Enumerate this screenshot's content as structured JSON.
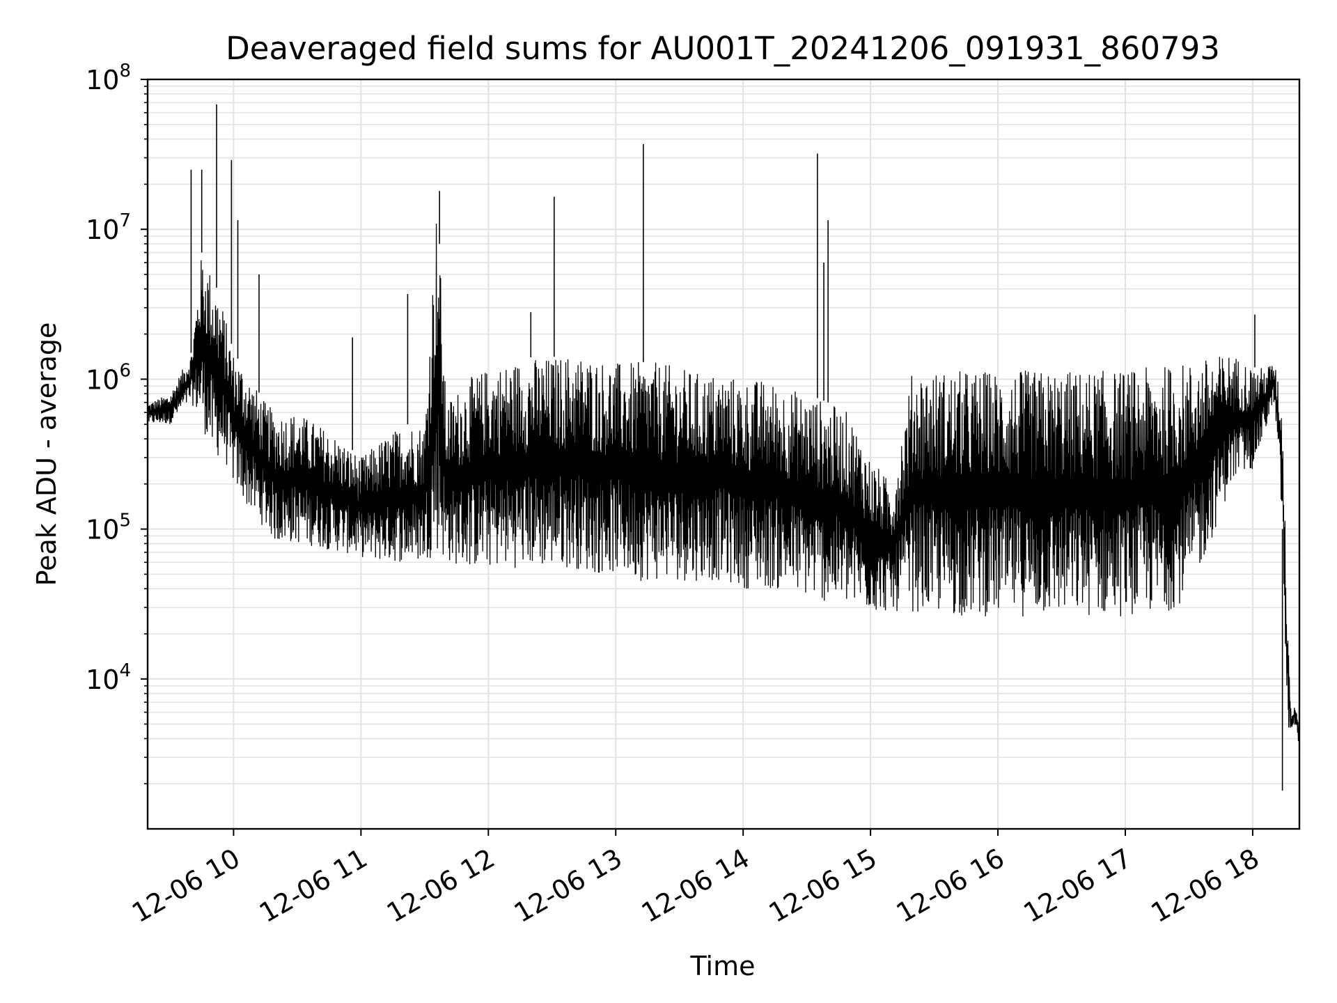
{
  "chart_data": {
    "type": "line",
    "title": "Deaveraged field sums for AU001T_20241206_091931_860793",
    "xlabel": "Time",
    "ylabel": "Peak ADU - average",
    "yscale": "log",
    "xlim": [
      "2024-12-06 09:19:31",
      "2024-12-06 18:22:00"
    ],
    "ylim": [
      1000,
      100000000
    ],
    "x_ticks": [
      "12-06 10",
      "12-06 11",
      "12-06 12",
      "12-06 13",
      "12-06 14",
      "12-06 15",
      "12-06 16",
      "12-06 17",
      "12-06 18"
    ],
    "y_ticks": [
      {
        "base": "10",
        "exp": "4",
        "value": 10000
      },
      {
        "base": "10",
        "exp": "5",
        "value": 100000
      },
      {
        "base": "10",
        "exp": "6",
        "value": 1000000
      },
      {
        "base": "10",
        "exp": "7",
        "value": 10000000
      },
      {
        "base": "10",
        "exp": "8",
        "value": 100000000
      }
    ],
    "grid": true,
    "line_color": "#000000",
    "series": [
      {
        "x": [
          "2024-12-06 09:20",
          "2024-12-06 09:30",
          "2024-12-06 09:40",
          "2024-12-06 09:45",
          "2024-12-06 09:50",
          "2024-12-06 09:55",
          "2024-12-06 10:00",
          "2024-12-06 10:05",
          "2024-12-06 10:10",
          "2024-12-06 10:15",
          "2024-12-06 10:20",
          "2024-12-06 10:30",
          "2024-12-06 10:40",
          "2024-12-06 10:50",
          "2024-12-06 11:00",
          "2024-12-06 11:10",
          "2024-12-06 11:20",
          "2024-12-06 11:30",
          "2024-12-06 11:36",
          "2024-12-06 11:40",
          "2024-12-06 11:50",
          "2024-12-06 12:00",
          "2024-12-06 12:10",
          "2024-12-06 12:20",
          "2024-12-06 12:30",
          "2024-12-06 12:40",
          "2024-12-06 12:50",
          "2024-12-06 13:00",
          "2024-12-06 13:10",
          "2024-12-06 13:20",
          "2024-12-06 13:30",
          "2024-12-06 13:40",
          "2024-12-06 13:50",
          "2024-12-06 14:00",
          "2024-12-06 14:10",
          "2024-12-06 14:20",
          "2024-12-06 14:30",
          "2024-12-06 14:40",
          "2024-12-06 14:50",
          "2024-12-06 15:00",
          "2024-12-06 15:10",
          "2024-12-06 15:20",
          "2024-12-06 15:30",
          "2024-12-06 15:40",
          "2024-12-06 15:50",
          "2024-12-06 16:00",
          "2024-12-06 16:10",
          "2024-12-06 16:20",
          "2024-12-06 16:30",
          "2024-12-06 16:40",
          "2024-12-06 16:50",
          "2024-12-06 17:00",
          "2024-12-06 17:10",
          "2024-12-06 17:20",
          "2024-12-06 17:30",
          "2024-12-06 17:40",
          "2024-12-06 17:50",
          "2024-12-06 18:00",
          "2024-12-06 18:05",
          "2024-12-06 18:10",
          "2024-12-06 18:12",
          "2024-12-06 18:14",
          "2024-12-06 18:16",
          "2024-12-06 18:18",
          "2024-12-06 18:20",
          "2024-12-06 18:22"
        ],
        "upper": [
          700000,
          800000,
          1500000,
          7000000,
          5000000,
          3000000,
          1500000,
          1200000,
          900000,
          700000,
          600000,
          600000,
          500000,
          400000,
          300000,
          400000,
          500000,
          500000,
          18000000,
          700000,
          1000000,
          1200000,
          1300000,
          1400000,
          1400000,
          1500000,
          1400000,
          1300000,
          1300000,
          1300000,
          1200000,
          1100000,
          1100000,
          1000000,
          1000000,
          900000,
          800000,
          700000,
          600000,
          300000,
          200000,
          1200000,
          1150000,
          1150000,
          1150000,
          1150000,
          1150000,
          1150000,
          1150000,
          1150000,
          1150000,
          1150000,
          1200000,
          1250000,
          1300000,
          1400000,
          1500000,
          1200000,
          1200000,
          1300000,
          1000000,
          600000,
          50000,
          6000,
          7000,
          5000
        ],
        "lower": [
          500000,
          500000,
          700000,
          500000,
          300000,
          300000,
          200000,
          150000,
          120000,
          100000,
          80000,
          80000,
          75000,
          70000,
          65000,
          60000,
          60000,
          60000,
          70000,
          60000,
          55000,
          55000,
          55000,
          55000,
          55000,
          55000,
          50000,
          50000,
          45000,
          45000,
          45000,
          45000,
          45000,
          40000,
          40000,
          38000,
          35000,
          32000,
          30000,
          28000,
          28000,
          28000,
          27000,
          26000,
          26000,
          26000,
          26000,
          26000,
          26000,
          26000,
          26000,
          26000,
          27000,
          28000,
          35000,
          80000,
          200000,
          250000,
          400000,
          700000,
          300000,
          100000,
          5000,
          4500,
          5000,
          3500
        ],
        "spikes": [
          {
            "x": "2024-12-06 09:52",
            "y": 68000000
          },
          {
            "x": "2024-12-06 09:59",
            "y": 29000000
          },
          {
            "x": "2024-12-06 09:40",
            "y": 25000000
          },
          {
            "x": "2024-12-06 09:45",
            "y": 25000000
          },
          {
            "x": "2024-12-06 10:02",
            "y": 11500000
          },
          {
            "x": "2024-12-06 10:12",
            "y": 5000000
          },
          {
            "x": "2024-12-06 10:56",
            "y": 1900000
          },
          {
            "x": "2024-12-06 11:22",
            "y": 3700000
          },
          {
            "x": "2024-12-06 11:37",
            "y": 18000000
          },
          {
            "x": "2024-12-06 12:20",
            "y": 2800000
          },
          {
            "x": "2024-12-06 12:31",
            "y": 16500000
          },
          {
            "x": "2024-12-06 13:13",
            "y": 37000000
          },
          {
            "x": "2024-12-06 14:35",
            "y": 32000000
          },
          {
            "x": "2024-12-06 14:38",
            "y": 6000000
          },
          {
            "x": "2024-12-06 14:40",
            "y": 11500000
          },
          {
            "x": "2024-12-06 18:01",
            "y": 2700000
          },
          {
            "x": "2024-12-06 18:14",
            "y": 1800
          },
          {
            "x": "2024-12-06 18:17",
            "y": 9700
          }
        ]
      }
    ]
  }
}
